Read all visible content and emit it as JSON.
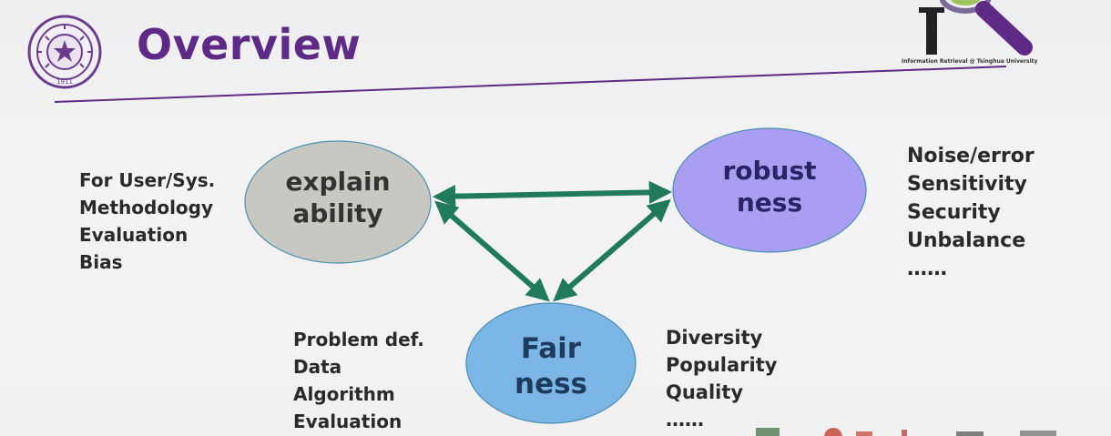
{
  "slide": {
    "title": "Overview",
    "logo_caption": "Information Retrieval @ Tsinghua University",
    "seal_text": "1911",
    "colors": {
      "title": "#5e2a86",
      "arrow": "#1f7a5e",
      "explainability_fill": "#c8c8c2",
      "robustness_fill": "#a99ef2",
      "fairness_fill": "#7cb6e6"
    }
  },
  "nodes": {
    "explainability": {
      "line1": "explain",
      "line2": "ability"
    },
    "robustness": {
      "line1": "robust",
      "line2": "ness"
    },
    "fairness": {
      "line1": "Fair",
      "line2": "ness"
    }
  },
  "lists": {
    "explainability": [
      "For User/Sys.",
      "Methodology",
      "Evaluation",
      "Bias"
    ],
    "robustness": [
      "Noise/error",
      "Sensitivity",
      "Security",
      "Unbalance",
      "……"
    ],
    "fairness_left": [
      "Problem def.",
      "Data",
      "Algorithm",
      "Evaluation"
    ],
    "fairness_right": [
      "Diversity",
      "Popularity",
      "Quality",
      "……"
    ]
  }
}
